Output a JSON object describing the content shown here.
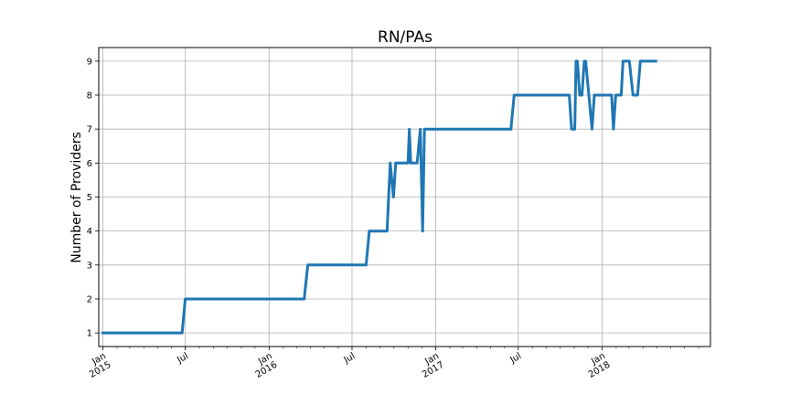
{
  "chart_data": {
    "type": "line",
    "title": "RN/PAs",
    "xlabel": "",
    "ylabel": "Number of Providers",
    "ylim": [
      0.6,
      9.4
    ],
    "xlim": [
      "2014-12-23",
      "2018-08-27"
    ],
    "grid": true,
    "y_ticks": [
      1,
      2,
      3,
      4,
      5,
      6,
      7,
      8,
      9
    ],
    "x_ticks": [
      {
        "date": "2015-01-01",
        "label": [
          "Jan",
          "2015"
        ]
      },
      {
        "date": "2015-07-01",
        "label": [
          "Jul"
        ]
      },
      {
        "date": "2016-01-01",
        "label": [
          "Jan",
          "2016"
        ]
      },
      {
        "date": "2016-07-01",
        "label": [
          "Jul"
        ]
      },
      {
        "date": "2017-01-01",
        "label": [
          "Jan",
          "2017"
        ]
      },
      {
        "date": "2017-07-01",
        "label": [
          "Jul"
        ]
      },
      {
        "date": "2018-01-01",
        "label": [
          "Jan",
          "2018"
        ]
      }
    ],
    "minor_x_ticks": [
      "2015-02-01",
      "2015-03-01",
      "2015-04-01",
      "2015-05-01",
      "2015-06-01",
      "2015-08-01",
      "2015-09-01",
      "2015-10-01",
      "2015-11-01",
      "2015-12-01",
      "2016-02-01",
      "2016-03-01",
      "2016-04-01",
      "2016-05-01",
      "2016-06-01",
      "2016-08-01",
      "2016-09-01",
      "2016-10-01",
      "2016-11-01",
      "2016-12-01",
      "2017-02-01",
      "2017-03-01",
      "2017-04-01",
      "2017-05-01",
      "2017-06-01",
      "2017-08-01",
      "2017-09-01",
      "2017-10-01",
      "2017-11-01",
      "2017-12-01",
      "2018-02-01",
      "2018-03-01",
      "2018-04-01",
      "2018-05-01",
      "2018-06-01",
      "2018-07-01",
      "2018-08-01"
    ],
    "series": [
      {
        "color": "#1f77b4",
        "x": [
          "2015-01-01",
          "2015-06-24",
          "2015-07-01",
          "2016-03-18",
          "2016-03-26",
          "2016-08-01",
          "2016-08-08",
          "2016-09-16",
          "2016-09-23",
          "2016-09-30",
          "2016-10-05",
          "2016-11-01",
          "2016-11-04",
          "2016-11-07",
          "2016-11-21",
          "2016-11-28",
          "2016-12-03",
          "2016-12-07",
          "2016-12-15",
          "2017-06-15",
          "2017-06-22",
          "2017-10-21",
          "2017-10-26",
          "2017-11-02",
          "2017-11-05",
          "2017-11-08",
          "2017-11-13",
          "2017-11-18",
          "2017-11-23",
          "2017-11-26",
          "2017-12-10",
          "2017-12-15",
          "2017-12-20",
          "2018-01-22",
          "2018-01-26",
          "2018-01-31",
          "2018-02-12",
          "2018-02-16",
          "2018-02-24",
          "2018-03-02",
          "2018-03-10",
          "2018-03-20",
          "2018-03-26",
          "2018-04-12",
          "2018-04-16",
          "2018-04-22",
          "2018-04-29"
        ],
        "y": [
          1,
          1,
          2,
          2,
          3,
          3,
          4,
          4,
          6,
          5,
          6,
          6,
          7,
          6,
          6,
          7,
          4,
          7,
          7,
          7,
          8,
          8,
          7,
          7,
          9,
          9,
          8,
          8,
          9,
          9,
          7,
          8,
          8,
          8,
          7,
          8,
          8,
          9,
          9,
          9,
          8,
          8,
          9,
          9,
          9,
          9,
          9
        ]
      }
    ]
  }
}
